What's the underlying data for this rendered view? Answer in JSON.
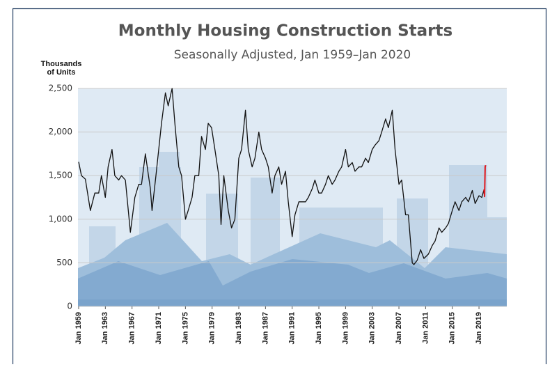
{
  "chart_data": {
    "type": "line",
    "title": "Monthly Housing Construction Starts",
    "subtitle": "Seasonally Adjusted, Jan 1959–Jan 2020",
    "ylabel": [
      "Thousands",
      "of Units"
    ],
    "x": [
      "1959-01",
      "1959-06",
      "1960-01",
      "1960-10",
      "1961-06",
      "1962-01",
      "1962-06",
      "1963-01",
      "1963-06",
      "1964-01",
      "1964-06",
      "1965-01",
      "1965-06",
      "1966-01",
      "1966-10",
      "1967-06",
      "1968-01",
      "1968-06",
      "1969-01",
      "1969-10",
      "1970-01",
      "1970-08",
      "1971-01",
      "1971-06",
      "1972-01",
      "1972-06",
      "1973-01",
      "1973-06",
      "1974-01",
      "1974-06",
      "1975-01",
      "1975-06",
      "1976-01",
      "1976-06",
      "1977-01",
      "1977-06",
      "1978-01",
      "1978-06",
      "1978-12",
      "1979-06",
      "1980-01",
      "1980-05",
      "1980-10",
      "1981-06",
      "1981-12",
      "1982-06",
      "1983-01",
      "1983-06",
      "1984-01",
      "1984-06",
      "1985-01",
      "1985-06",
      "1986-01",
      "1986-06",
      "1987-01",
      "1987-06",
      "1988-01",
      "1988-06",
      "1989-01",
      "1989-06",
      "1990-01",
      "1990-06",
      "1991-01",
      "1991-06",
      "1992-01",
      "1992-06",
      "1993-01",
      "1993-06",
      "1994-01",
      "1994-06",
      "1995-01",
      "1995-06",
      "1996-01",
      "1996-06",
      "1997-01",
      "1997-06",
      "1998-01",
      "1998-06",
      "1999-01",
      "1999-06",
      "2000-01",
      "2000-06",
      "2001-01",
      "2001-06",
      "2002-01",
      "2002-06",
      "2003-01",
      "2003-06",
      "2004-01",
      "2004-06",
      "2005-01",
      "2005-06",
      "2006-01",
      "2006-06",
      "2007-01",
      "2007-06",
      "2008-01",
      "2008-06",
      "2009-01",
      "2009-04",
      "2009-10",
      "2010-04",
      "2010-10",
      "2011-06",
      "2012-01",
      "2012-06",
      "2013-01",
      "2013-06",
      "2014-01",
      "2014-06",
      "2015-01",
      "2015-06",
      "2016-01",
      "2016-06",
      "2017-01",
      "2017-06",
      "2018-01",
      "2018-06",
      "2019-01",
      "2019-06",
      "2019-10",
      "2019-11",
      "2019-12",
      "2020-01"
    ],
    "series": [
      {
        "color": "#111111",
        "values": [
          1657,
          1500,
          1460,
          1100,
          1300,
          1300,
          1500,
          1250,
          1600,
          1800,
          1500,
          1450,
          1500,
          1450,
          850,
          1250,
          1400,
          1400,
          1750,
          1350,
          1100,
          1500,
          1800,
          2100,
          2450,
          2300,
          2500,
          2100,
          1600,
          1500,
          1000,
          1100,
          1250,
          1500,
          1500,
          1950,
          1800,
          2100,
          2050,
          1800,
          1500,
          940,
          1500,
          1100,
          900,
          1000,
          1700,
          1800,
          2250,
          1800,
          1600,
          1700,
          2000,
          1800,
          1700,
          1600,
          1300,
          1500,
          1600,
          1400,
          1550,
          1200,
          800,
          1050,
          1200,
          1200,
          1200,
          1250,
          1350,
          1450,
          1300,
          1300,
          1400,
          1500,
          1400,
          1450,
          1550,
          1600,
          1800,
          1600,
          1650,
          1550,
          1600,
          1600,
          1700,
          1650,
          1800,
          1850,
          1900,
          2000,
          2150,
          2050,
          2250,
          1800,
          1400,
          1450,
          1050,
          1050,
          500,
          480,
          530,
          650,
          550,
          600,
          700,
          750,
          900,
          850,
          900,
          950,
          1100,
          1200,
          1100,
          1200,
          1250,
          1200,
          1330,
          1180,
          1270,
          1250,
          1340,
          null,
          null,
          null
        ]
      },
      {
        "color": "#e0191e",
        "values": [
          null,
          null,
          null,
          null,
          null,
          null,
          null,
          null,
          null,
          null,
          null,
          null,
          null,
          null,
          null,
          null,
          null,
          null,
          null,
          null,
          null,
          null,
          null,
          null,
          null,
          null,
          null,
          null,
          null,
          null,
          null,
          null,
          null,
          null,
          null,
          null,
          null,
          null,
          null,
          null,
          null,
          null,
          null,
          null,
          null,
          null,
          null,
          null,
          null,
          null,
          null,
          null,
          null,
          null,
          null,
          null,
          null,
          null,
          null,
          null,
          null,
          null,
          null,
          null,
          null,
          null,
          null,
          null,
          null,
          null,
          null,
          null,
          null,
          null,
          null,
          null,
          null,
          null,
          null,
          null,
          null,
          null,
          null,
          null,
          null,
          null,
          null,
          null,
          null,
          null,
          null,
          null,
          null,
          null,
          null,
          null,
          null,
          null,
          null,
          null,
          null,
          null,
          null,
          null,
          null,
          null,
          null,
          null,
          null,
          null,
          null,
          null,
          null,
          null,
          null,
          null,
          null,
          null,
          null,
          null,
          1340,
          1260,
          1600,
          1620
        ]
      }
    ],
    "xlim": [
      "1959-01",
      "2023-03"
    ],
    "xticks": [
      {
        "value": "1959-01",
        "label": "Jan 1959"
      },
      {
        "value": "1963-01",
        "label": "Jan 1963"
      },
      {
        "value": "1967-01",
        "label": "Jan 1967"
      },
      {
        "value": "1971-01",
        "label": "Jan 1971"
      },
      {
        "value": "1975-01",
        "label": "Jan 1975"
      },
      {
        "value": "1979-01",
        "label": "Jan 1979"
      },
      {
        "value": "1983-01",
        "label": "Jan 1983"
      },
      {
        "value": "1987-01",
        "label": "Jan 1987"
      },
      {
        "value": "1991-01",
        "label": "Jan 1991"
      },
      {
        "value": "1995-01",
        "label": "Jan 1995"
      },
      {
        "value": "1999-01",
        "label": "Jan 1999"
      },
      {
        "value": "2003-01",
        "label": "Jan 2003"
      },
      {
        "value": "2007-01",
        "label": "Jan 2007"
      },
      {
        "value": "2011-01",
        "label": "Jan 2011"
      },
      {
        "value": "2015-01",
        "label": "Jan 2015"
      },
      {
        "value": "2019-01",
        "label": "Jan 2019"
      }
    ],
    "ylim": [
      0,
      2500
    ],
    "yticks": [
      0,
      500,
      {
        "value": 1000,
        "label": "1,000"
      },
      {
        "value": 1500,
        "label": "1,500"
      },
      {
        "value": 2000,
        "label": "2,000"
      },
      {
        "value": 2500,
        "label": "2,500"
      }
    ],
    "grid": true
  }
}
